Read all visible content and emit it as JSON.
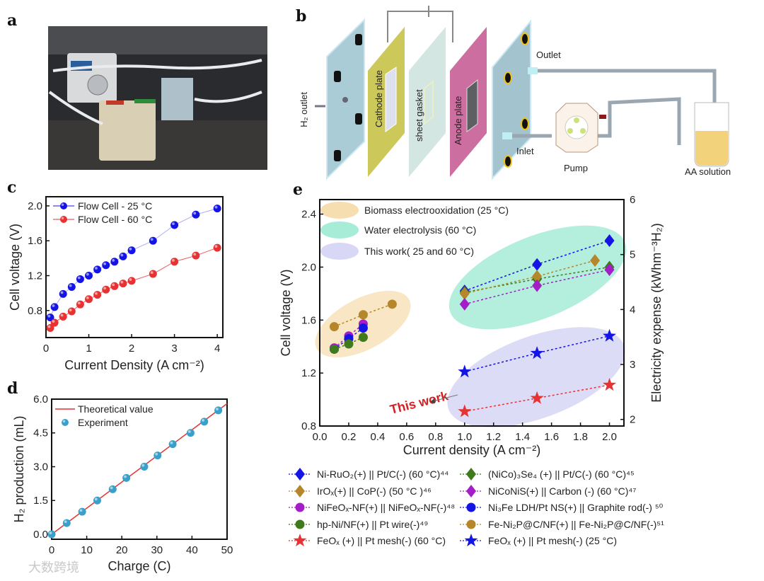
{
  "panels": {
    "a": "a",
    "b": "b",
    "c": "c",
    "d": "d",
    "e": "e"
  },
  "schematic": {
    "h2_outlet": "H₂ outlet",
    "cathode": "Cathode plate",
    "gasket": "sheet gasket",
    "anode": "Anode plate",
    "outlet": "Outlet",
    "inlet": "Inlet",
    "pump": "Pump",
    "solution": "AA solution"
  },
  "watermark": "大数跨境",
  "colors": {
    "blue": "#1414e6",
    "red": "#e63232",
    "green": "#3f7a1c",
    "brown": "#b5862a",
    "purple": "#a41ec8",
    "teal": "#3a9fc9"
  },
  "chart_data": [
    {
      "id": "c",
      "type": "line",
      "xlabel": "Current Density (A cm⁻²)",
      "ylabel": "Cell voltage (V)",
      "xlim": [
        0,
        4.13
      ],
      "ylim": [
        0.49,
        2.105
      ],
      "xticks": [
        0,
        1,
        2,
        3,
        4
      ],
      "yticks": [
        0.8,
        1.2,
        1.6,
        2.0
      ],
      "ytick_fmt": 1,
      "legend_position": "top-left",
      "x": [
        0.1,
        0.2,
        0.4,
        0.6,
        0.8,
        1.0,
        1.2,
        1.4,
        1.6,
        1.8,
        2.0,
        2.5,
        3.0,
        3.5,
        4.0
      ],
      "series": [
        {
          "name": "Flow Cell - 25 °C",
          "color": "#1414e6",
          "values": [
            0.72,
            0.84,
            0.99,
            1.07,
            1.16,
            1.2,
            1.27,
            1.32,
            1.36,
            1.42,
            1.49,
            1.6,
            1.78,
            1.9,
            1.97
          ]
        },
        {
          "name": "Flow Cell - 60 °C",
          "color": "#e63232",
          "values": [
            0.6,
            0.66,
            0.73,
            0.79,
            0.87,
            0.93,
            0.98,
            1.04,
            1.08,
            1.11,
            1.14,
            1.22,
            1.36,
            1.43,
            1.52
          ]
        }
      ]
    },
    {
      "id": "d",
      "type": "scatter",
      "xlabel": "Charge (C)",
      "ylabel": "H₂ production (mL)",
      "xlim": [
        0,
        50
      ],
      "ylim": [
        -0.22,
        6.0
      ],
      "xticks": [
        0,
        10,
        20,
        30,
        40,
        50
      ],
      "yticks": [
        0.0,
        1.5,
        3.0,
        4.5,
        6.0
      ],
      "ytick_fmt": 1,
      "legend_position": "top-left",
      "theoretical": {
        "name": "Theoretical value",
        "color": "#e63232",
        "x": [
          0,
          50
        ],
        "y": [
          0,
          5.8
        ]
      },
      "experiment": {
        "name": "Experiment",
        "color": "#3a9fc9",
        "x": [
          0,
          4.3,
          8.7,
          13,
          17.4,
          21.3,
          26.4,
          30.2,
          34.5,
          39.6,
          43.5,
          47.5
        ],
        "y": [
          0,
          0.5,
          1.0,
          1.5,
          2.0,
          2.5,
          3.0,
          3.5,
          4.0,
          4.5,
          5.0,
          5.5
        ]
      }
    },
    {
      "id": "e",
      "type": "scatter",
      "xlabel": "Current density (A cm⁻²)",
      "ylabel": "Cell voltage (V)",
      "y2label": "Electricity expense (kWhm⁻³H₂)",
      "xlim": [
        0,
        2.1
      ],
      "ylim": [
        0.8,
        2.51
      ],
      "y2lim": [
        1.88,
        6
      ],
      "xticks": [
        0.0,
        0.2,
        0.4,
        0.6,
        0.8,
        1.0,
        1.2,
        1.4,
        1.6,
        1.8,
        2.0
      ],
      "yticks": [
        0.8,
        1.2,
        1.6,
        2.0,
        2.4
      ],
      "y2ticks": [
        2,
        3,
        4,
        5,
        6
      ],
      "regions": [
        {
          "name": "Biomass electrooxidation (25 °C)",
          "color": "#f7deb0"
        },
        {
          "name": "Water electrolysis (60 °C)",
          "color": "#a6ecd6"
        },
        {
          "name": "This work( 25 and 60 °C)",
          "color": "#d8d8f6"
        }
      ],
      "annotation": "This work",
      "series": [
        {
          "name": "Ni-RuO₂(+) || Pt/C(-) (60 °C)⁴⁴",
          "marker": "diamond",
          "color": "#1414e6",
          "x": [
            1.0,
            1.5,
            2.0
          ],
          "y": [
            1.82,
            2.02,
            2.2
          ]
        },
        {
          "name": "(NiCo)₃Se₄ (+) || Pt/C(-)  (60 °C)⁴⁵",
          "marker": "diamond",
          "color": "#3f7a1c",
          "x": [
            1.0,
            1.5,
            2.0
          ],
          "y": [
            1.81,
            1.91,
            2.0
          ]
        },
        {
          "name": "IrOₓ(+) || CoP(-) (50 °C )⁴⁶",
          "marker": "diamond",
          "color": "#b5862a",
          "x": [
            1.0,
            1.5,
            1.9
          ],
          "y": [
            1.8,
            1.93,
            2.05
          ]
        },
        {
          "name": "NiCoNiS(+) || Carbon (-) (60 °C)⁴⁷",
          "marker": "diamond",
          "color": "#a41ec8",
          "x": [
            1.0,
            1.5,
            2.0
          ],
          "y": [
            1.72,
            1.86,
            1.98
          ]
        },
        {
          "name": "NiFeOₓ-NF(+) || NiFeOₓ-NF(-)⁴⁸",
          "marker": "circle",
          "color": "#a41ec8",
          "x": [
            0.1,
            0.2,
            0.3
          ],
          "y": [
            1.39,
            1.48,
            1.57
          ]
        },
        {
          "name": "Ni₃Fe LDH/Pt NS(+) || Graphite rod(-) ⁵⁰",
          "marker": "circle",
          "color": "#1414e6",
          "x": [
            0.1,
            0.2,
            0.3
          ],
          "y": [
            1.38,
            1.46,
            1.54
          ]
        },
        {
          "name": "hp-Ni/NF(+) || Pt wire(-)⁴⁹",
          "marker": "circle",
          "color": "#3f7a1c",
          "x": [
            0.1,
            0.2,
            0.3
          ],
          "y": [
            1.38,
            1.42,
            1.47
          ]
        },
        {
          "name": "Fe-Ni₂P@C/NF(+) || Fe-Ni₂P@C/NF(-)⁵¹",
          "marker": "circle",
          "color": "#b5862a",
          "x": [
            0.1,
            0.3,
            0.5
          ],
          "y": [
            1.55,
            1.64,
            1.72
          ]
        },
        {
          "name": "FeOₓ (+) || Pt mesh(-) (60 °C)",
          "marker": "star",
          "color": "#e63232",
          "x": [
            1.0,
            1.5,
            2.0
          ],
          "y": [
            0.91,
            1.01,
            1.11
          ]
        },
        {
          "name": "FeOₓ (+) || Pt mesh(-) (25 °C)",
          "marker": "star",
          "color": "#1414e6",
          "x": [
            1.0,
            1.5,
            2.0
          ],
          "y": [
            1.21,
            1.35,
            1.48
          ]
        }
      ],
      "legend_order": [
        0,
        1,
        2,
        3,
        4,
        5,
        6,
        7,
        8,
        9
      ]
    }
  ]
}
